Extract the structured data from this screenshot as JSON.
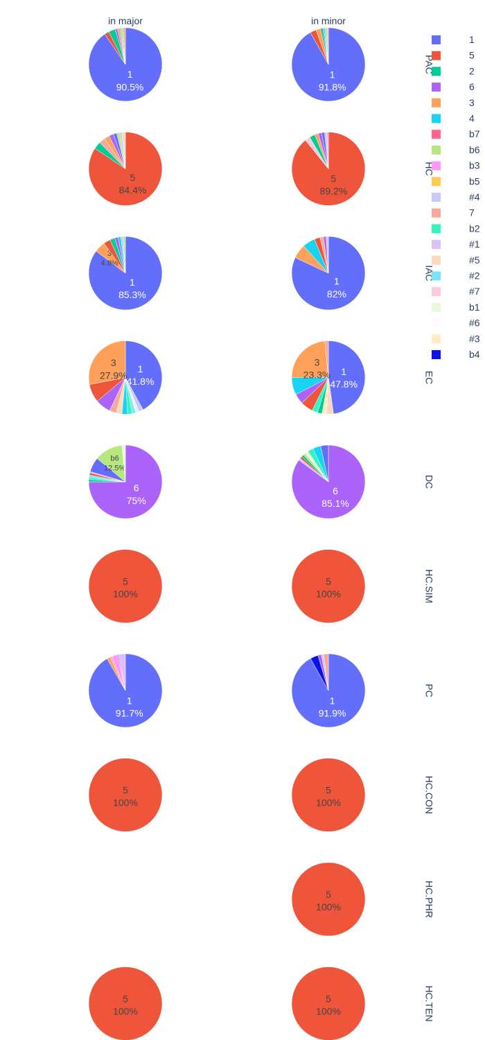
{
  "chart_data": {
    "type": "pie",
    "columns": [
      "in major",
      "in minor"
    ],
    "rows": [
      "PAC",
      "HC",
      "IAC",
      "EC",
      "DC",
      "HC.SIM",
      "PC",
      "HC.CON",
      "HC.PHR",
      "HC.TEN"
    ],
    "legend": {
      "placement": "right",
      "entries": [
        {
          "label": "1",
          "color": "#636efa"
        },
        {
          "label": "5",
          "color": "#EF553B"
        },
        {
          "label": "2",
          "color": "#00cc96"
        },
        {
          "label": "6",
          "color": "#ab63fa"
        },
        {
          "label": "3",
          "color": "#FFA15A"
        },
        {
          "label": "4",
          "color": "#19d3f3"
        },
        {
          "label": "b7",
          "color": "#FF6692"
        },
        {
          "label": "b6",
          "color": "#B6E880"
        },
        {
          "label": "b3",
          "color": "#FF97FF"
        },
        {
          "label": "b5",
          "color": "#FECB52"
        },
        {
          "label": "#4",
          "color": "#c6c9fb"
        },
        {
          "label": "7",
          "color": "#f5a99a"
        },
        {
          "label": "b2",
          "color": "#33f5c3"
        },
        {
          "label": "#1",
          "color": "#dcc0fb"
        },
        {
          "label": "#5",
          "color": "#ffd9bd"
        },
        {
          "label": "#2",
          "color": "#7be4f8"
        },
        {
          "label": "#7",
          "color": "#fbcbdb"
        },
        {
          "label": "b1",
          "color": "#e9f8d8"
        },
        {
          "label": "#6",
          "color": "#fffafe"
        },
        {
          "label": "#3",
          "color": "#ffecc4"
        },
        {
          "label": "b4",
          "color": "#0a12e8"
        }
      ]
    },
    "pies": [
      {
        "row": "PAC",
        "column": "in major",
        "slices": [
          {
            "label": "1",
            "value": 90.5,
            "text": "1\n90.5%"
          },
          {
            "label": "5",
            "value": 2.0
          },
          {
            "label": "2",
            "value": 3.0
          },
          {
            "label": "6",
            "value": 1.0
          },
          {
            "label": "3",
            "value": 1.0
          },
          {
            "label": "4",
            "value": 0.5
          },
          {
            "label": "b6",
            "value": 1.0
          },
          {
            "label": "7",
            "value": 1.0
          }
        ]
      },
      {
        "row": "PAC",
        "column": "in minor",
        "slices": [
          {
            "label": "1",
            "value": 91.8,
            "text": "1\n91.8%"
          },
          {
            "label": "5",
            "value": 2.7
          },
          {
            "label": "3",
            "value": 2.0
          },
          {
            "label": "2",
            "value": 1.0
          },
          {
            "label": "6",
            "value": 0.5
          },
          {
            "label": "4",
            "value": 0.5
          },
          {
            "label": "b6",
            "value": 1.0
          },
          {
            "label": "b3",
            "value": 0.5
          }
        ]
      },
      {
        "row": "HC",
        "column": "in major",
        "slices": [
          {
            "label": "5",
            "value": 84.4,
            "text": "5\n84.4%"
          },
          {
            "label": "2",
            "value": 3.3
          },
          {
            "label": "7",
            "value": 2.7
          },
          {
            "label": "3",
            "value": 2.3
          },
          {
            "label": "6",
            "value": 2.0
          },
          {
            "label": "1",
            "value": 1.5
          },
          {
            "label": "b6",
            "value": 1.3
          },
          {
            "label": "#4",
            "value": 1.0
          },
          {
            "label": "#5",
            "value": 1.5
          }
        ]
      },
      {
        "row": "HC",
        "column": "in minor",
        "slices": [
          {
            "label": "5",
            "value": 89.2,
            "text": "5\n89.2%"
          },
          {
            "label": "#7",
            "value": 2.3
          },
          {
            "label": "2",
            "value": 2.5
          },
          {
            "label": "3",
            "value": 1.5
          },
          {
            "label": "6",
            "value": 1.5
          },
          {
            "label": "1",
            "value": 1.3
          },
          {
            "label": "#4",
            "value": 1.0
          },
          {
            "label": "b3",
            "value": 0.7
          }
        ]
      },
      {
        "row": "IAC",
        "column": "in major",
        "slices": [
          {
            "label": "1",
            "value": 85.3,
            "text": "1\n85.3%"
          },
          {
            "label": "3",
            "value": 4.8,
            "text": "3\n4.8%"
          },
          {
            "label": "5",
            "value": 3.0
          },
          {
            "label": "2",
            "value": 2.2
          },
          {
            "label": "6",
            "value": 1.5
          },
          {
            "label": "4",
            "value": 1.2
          },
          {
            "label": "#4",
            "value": 1.0
          },
          {
            "label": "b6",
            "value": 1.0
          }
        ]
      },
      {
        "row": "IAC",
        "column": "in minor",
        "slices": [
          {
            "label": "1",
            "value": 82,
            "text": "1\n82%"
          },
          {
            "label": "3",
            "value": 6.2
          },
          {
            "label": "4",
            "value": 5.6
          },
          {
            "label": "5",
            "value": 2.5
          },
          {
            "label": "7",
            "value": 1.5
          },
          {
            "label": "6",
            "value": 1.2
          },
          {
            "label": "#4",
            "value": 1.0
          }
        ]
      },
      {
        "row": "EC",
        "column": "in major",
        "slices": [
          {
            "label": "1",
            "value": 41.8,
            "text": "1\n41.8%"
          },
          {
            "label": "#4",
            "value": 2.0
          },
          {
            "label": "b1",
            "value": 1.5
          },
          {
            "label": "#2",
            "value": 1.5
          },
          {
            "label": "b2",
            "value": 2.0
          },
          {
            "label": "4",
            "value": 2.5
          },
          {
            "label": "#5",
            "value": 2.5
          },
          {
            "label": "7",
            "value": 3.0
          },
          {
            "label": "6",
            "value": 6.8
          },
          {
            "label": "5",
            "value": 8.0
          },
          {
            "label": "3",
            "value": 27.9,
            "text": "3\n27.9%"
          }
        ]
      },
      {
        "row": "EC",
        "column": "in minor",
        "slices": [
          {
            "label": "1",
            "value": 47.8,
            "text": "1\n47.8%"
          },
          {
            "label": "#5",
            "value": 3.0
          },
          {
            "label": "#3",
            "value": 2.0
          },
          {
            "label": "2",
            "value": 2.0
          },
          {
            "label": "b2",
            "value": 2.5
          },
          {
            "label": "5",
            "value": 5.5
          },
          {
            "label": "6",
            "value": 4.5
          },
          {
            "label": "4",
            "value": 7.8
          },
          {
            "label": "3",
            "value": 23.3,
            "text": "3\n23.3%"
          },
          {
            "label": "7",
            "value": 1.6
          }
        ]
      },
      {
        "row": "DC",
        "column": "in major",
        "slices": [
          {
            "label": "6",
            "value": 75,
            "text": "6\n75%"
          },
          {
            "label": "2",
            "value": 1.0
          },
          {
            "label": "b2",
            "value": 1.0
          },
          {
            "label": "#2",
            "value": 1.0
          },
          {
            "label": "5",
            "value": 1.0
          },
          {
            "label": "b3",
            "value": 0.5
          },
          {
            "label": "1",
            "value": 6.5
          },
          {
            "label": "b6",
            "value": 12.5,
            "text": "b6\n12.5%"
          },
          {
            "label": "b1",
            "value": 1.5
          }
        ]
      },
      {
        "row": "DC",
        "column": "in minor",
        "slices": [
          {
            "label": "6",
            "value": 85.1,
            "text": "6\n85.1%"
          },
          {
            "label": "#4",
            "value": 1.0
          },
          {
            "label": "5",
            "value": 1.0
          },
          {
            "label": "2",
            "value": 1.0
          },
          {
            "label": "b6",
            "value": 1.0
          },
          {
            "label": "b1",
            "value": 1.5
          },
          {
            "label": "b2",
            "value": 2.5
          },
          {
            "label": "4",
            "value": 3.5
          },
          {
            "label": "1",
            "value": 3.4
          }
        ]
      },
      {
        "row": "HC.SIM",
        "column": "in major",
        "slices": [
          {
            "label": "5",
            "value": 100,
            "text": "5\n100%"
          }
        ]
      },
      {
        "row": "HC.SIM",
        "column": "in minor",
        "slices": [
          {
            "label": "5",
            "value": 100,
            "text": "5\n100%"
          }
        ]
      },
      {
        "row": "PC",
        "column": "in major",
        "slices": [
          {
            "label": "1",
            "value": 91.7,
            "text": "1\n91.7%"
          },
          {
            "label": "3",
            "value": 1.5
          },
          {
            "label": "7",
            "value": 0.8
          },
          {
            "label": "b3",
            "value": 2.5
          },
          {
            "label": "6",
            "value": 0.5
          },
          {
            "label": "#1",
            "value": 3.0
          }
        ]
      },
      {
        "row": "PC",
        "column": "in minor",
        "slices": [
          {
            "label": "1",
            "value": 91.9,
            "text": "1\n91.9%"
          },
          {
            "label": "b4",
            "value": 3.5
          },
          {
            "label": "6",
            "value": 1.5
          },
          {
            "label": "#4",
            "value": 1.0
          },
          {
            "label": "7",
            "value": 2.1
          }
        ]
      },
      {
        "row": "HC.CON",
        "column": "in major",
        "slices": [
          {
            "label": "5",
            "value": 100,
            "text": "5\n100%"
          }
        ]
      },
      {
        "row": "HC.CON",
        "column": "in minor",
        "slices": [
          {
            "label": "5",
            "value": 100,
            "text": "5\n100%"
          }
        ]
      },
      {
        "row": "HC.PHR",
        "column": "in minor",
        "slices": [
          {
            "label": "5",
            "value": 100,
            "text": "5\n100%"
          }
        ]
      },
      {
        "row": "HC.TEN",
        "column": "in major",
        "slices": [
          {
            "label": "5",
            "value": 100,
            "text": "5\n100%"
          }
        ]
      },
      {
        "row": "HC.TEN",
        "column": "in minor",
        "slices": [
          {
            "label": "5",
            "value": 100,
            "text": "5\n100%"
          }
        ]
      }
    ]
  }
}
